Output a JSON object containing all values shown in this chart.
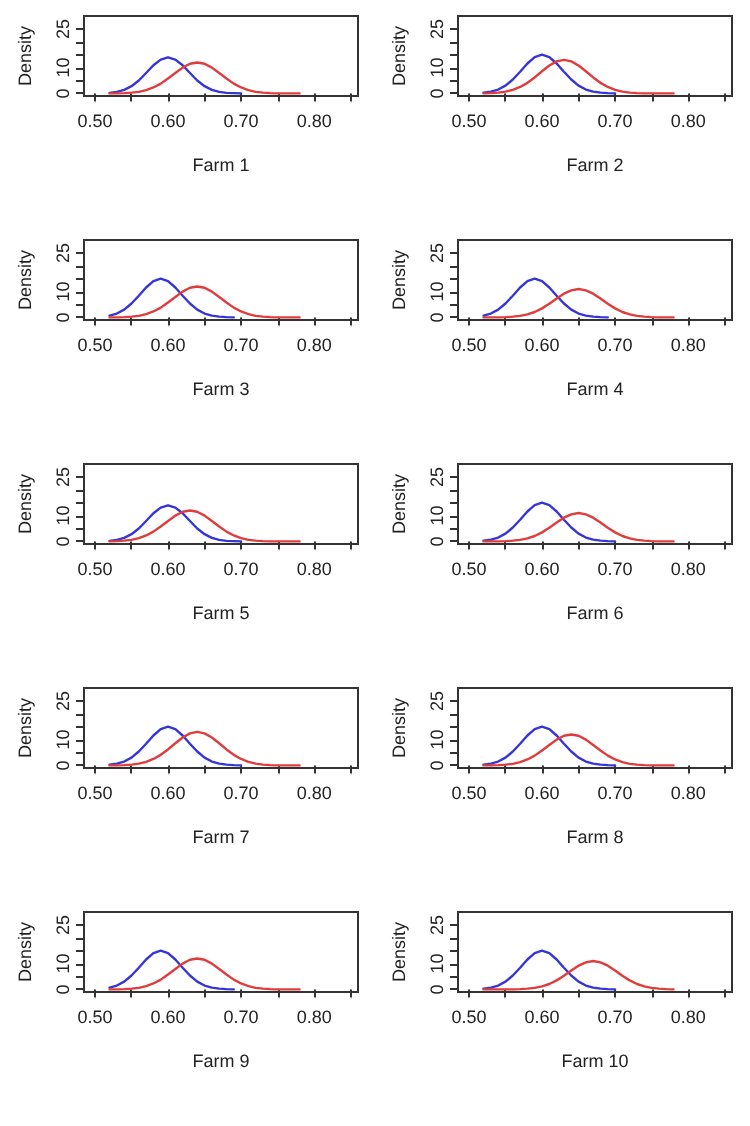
{
  "chart_data": [
    {
      "type": "line",
      "xlabel": "Farm 1",
      "ylabel": "Density",
      "marker": "none",
      "line_style": "solid",
      "grid": false,
      "xlim": [
        0.485,
        0.86
      ],
      "ylim": [
        -1,
        30
      ],
      "xticks": [
        {
          "value": 0.5,
          "label": "0.50"
        },
        {
          "value": 0.55,
          "label": null
        },
        {
          "value": 0.6,
          "label": "0.60"
        },
        {
          "value": 0.65,
          "label": null
        },
        {
          "value": 0.7,
          "label": "0.70"
        },
        {
          "value": 0.75,
          "label": null
        },
        {
          "value": 0.8,
          "label": "0.80"
        },
        {
          "value": 0.85,
          "label": null
        }
      ],
      "yticks": [
        0,
        {
          "value": 5,
          "label": null
        },
        10,
        {
          "value": 15,
          "label": null
        },
        {
          "value": 20,
          "label": null
        },
        25
      ],
      "x": [
        0.52,
        0.53,
        0.54,
        0.55,
        0.56,
        0.57,
        0.58,
        0.59,
        0.6,
        0.61,
        0.62,
        0.63,
        0.64,
        0.65,
        0.66,
        0.67,
        0.68,
        0.69,
        0.7,
        0.71,
        0.72,
        0.73,
        0.74,
        0.75,
        0.76,
        0.77,
        0.78
      ],
      "series": [
        {
          "color": "#3535d8",
          "values": [
            0.2,
            0.6,
            1.4,
            2.8,
            5.0,
            7.9,
            10.9,
            13.1,
            14,
            13.1,
            10.9,
            7.9,
            5.0,
            2.8,
            1.4,
            0.6,
            0.2,
            0.1,
            0,
            null,
            null,
            null,
            null,
            null,
            null,
            null,
            null
          ]
        },
        {
          "color": "#e03c3c",
          "values": [
            0,
            0,
            0.1,
            0.3,
            0.6,
            1.3,
            2.3,
            3.8,
            5.8,
            7.9,
            10.0,
            11.5,
            12,
            11.5,
            10.0,
            7.9,
            5.8,
            3.8,
            2.3,
            1.3,
            0.6,
            0.3,
            0.1,
            0,
            0,
            0,
            0
          ]
        }
      ]
    },
    {
      "type": "line",
      "xlabel": "Farm 2",
      "ylabel": "Density",
      "marker": "none",
      "line_style": "solid",
      "grid": false,
      "xlim": [
        0.485,
        0.86
      ],
      "ylim": [
        -1,
        30
      ],
      "xticks": [
        {
          "value": 0.5,
          "label": "0.50"
        },
        {
          "value": 0.55,
          "label": null
        },
        {
          "value": 0.6,
          "label": "0.60"
        },
        {
          "value": 0.65,
          "label": null
        },
        {
          "value": 0.7,
          "label": "0.70"
        },
        {
          "value": 0.75,
          "label": null
        },
        {
          "value": 0.8,
          "label": "0.80"
        },
        {
          "value": 0.85,
          "label": null
        }
      ],
      "yticks": [
        0,
        {
          "value": 5,
          "label": null
        },
        10,
        {
          "value": 15,
          "label": null
        },
        {
          "value": 20,
          "label": null
        },
        25
      ],
      "x": [
        0.52,
        0.53,
        0.54,
        0.55,
        0.56,
        0.57,
        0.58,
        0.59,
        0.6,
        0.61,
        0.62,
        0.63,
        0.64,
        0.65,
        0.66,
        0.67,
        0.68,
        0.69,
        0.7,
        0.71,
        0.72,
        0.73,
        0.74,
        0.75,
        0.76,
        0.77,
        0.78
      ],
      "series": [
        {
          "color": "#3535d8",
          "values": [
            0.3,
            0.7,
            1.5,
            3.0,
            5.4,
            8.4,
            11.6,
            14.1,
            15,
            14.1,
            11.6,
            8.4,
            5.4,
            3.0,
            1.5,
            0.7,
            0.3,
            0.1,
            0,
            null,
            null,
            null,
            null,
            null,
            null,
            null,
            null
          ]
        },
        {
          "color": "#e03c3c",
          "values": [
            0,
            0.1,
            0.3,
            0.7,
            1.4,
            2.5,
            4.1,
            6.2,
            8.6,
            10.8,
            12.4,
            13,
            12.4,
            10.8,
            8.6,
            6.2,
            4.1,
            2.5,
            1.4,
            0.7,
            0.3,
            0.1,
            0,
            0,
            0,
            0,
            0
          ]
        }
      ]
    },
    {
      "type": "line",
      "xlabel": "Farm 3",
      "ylabel": "Density",
      "marker": "none",
      "line_style": "solid",
      "grid": false,
      "xlim": [
        0.485,
        0.86
      ],
      "ylim": [
        -1,
        30
      ],
      "xticks": [
        {
          "value": 0.5,
          "label": "0.50"
        },
        {
          "value": 0.55,
          "label": null
        },
        {
          "value": 0.6,
          "label": "0.60"
        },
        {
          "value": 0.65,
          "label": null
        },
        {
          "value": 0.7,
          "label": "0.70"
        },
        {
          "value": 0.75,
          "label": null
        },
        {
          "value": 0.8,
          "label": "0.80"
        },
        {
          "value": 0.85,
          "label": null
        }
      ],
      "yticks": [
        0,
        {
          "value": 5,
          "label": null
        },
        10,
        {
          "value": 15,
          "label": null
        },
        {
          "value": 20,
          "label": null
        },
        25
      ],
      "x": [
        0.52,
        0.53,
        0.54,
        0.55,
        0.56,
        0.57,
        0.58,
        0.59,
        0.6,
        0.61,
        0.62,
        0.63,
        0.64,
        0.65,
        0.66,
        0.67,
        0.68,
        0.69,
        0.7,
        0.71,
        0.72,
        0.73,
        0.74,
        0.75,
        0.76,
        0.77,
        0.78
      ],
      "series": [
        {
          "color": "#3535d8",
          "values": [
            0.7,
            1.5,
            3.0,
            5.4,
            8.4,
            11.6,
            14.1,
            15,
            14.1,
            11.6,
            8.4,
            5.4,
            3.0,
            1.5,
            0.7,
            0.3,
            0.1,
            0,
            null,
            null,
            null,
            null,
            null,
            null,
            null,
            null,
            null
          ]
        },
        {
          "color": "#e03c3c",
          "values": [
            0,
            0,
            0.1,
            0.3,
            0.6,
            1.3,
            2.3,
            3.8,
            5.8,
            7.9,
            10.0,
            11.5,
            12,
            11.5,
            10.0,
            7.9,
            5.8,
            3.8,
            2.3,
            1.3,
            0.6,
            0.3,
            0.1,
            0,
            0,
            0,
            0
          ]
        }
      ]
    },
    {
      "type": "line",
      "xlabel": "Farm 4",
      "ylabel": "Density",
      "marker": "none",
      "line_style": "solid",
      "grid": false,
      "xlim": [
        0.485,
        0.86
      ],
      "ylim": [
        -1,
        30
      ],
      "xticks": [
        {
          "value": 0.5,
          "label": "0.50"
        },
        {
          "value": 0.55,
          "label": null
        },
        {
          "value": 0.6,
          "label": "0.60"
        },
        {
          "value": 0.65,
          "label": null
        },
        {
          "value": 0.7,
          "label": "0.70"
        },
        {
          "value": 0.75,
          "label": null
        },
        {
          "value": 0.8,
          "label": "0.80"
        },
        {
          "value": 0.85,
          "label": null
        }
      ],
      "yticks": [
        0,
        {
          "value": 5,
          "label": null
        },
        10,
        {
          "value": 15,
          "label": null
        },
        {
          "value": 20,
          "label": null
        },
        25
      ],
      "x": [
        0.52,
        0.53,
        0.54,
        0.55,
        0.56,
        0.57,
        0.58,
        0.59,
        0.6,
        0.61,
        0.62,
        0.63,
        0.64,
        0.65,
        0.66,
        0.67,
        0.68,
        0.69,
        0.7,
        0.71,
        0.72,
        0.73,
        0.74,
        0.75,
        0.76,
        0.77,
        0.78
      ],
      "series": [
        {
          "color": "#3535d8",
          "values": [
            0.7,
            1.5,
            3.0,
            5.4,
            8.4,
            11.6,
            14.1,
            15,
            14.1,
            11.6,
            8.4,
            5.4,
            3.0,
            1.5,
            0.7,
            0.3,
            0.1,
            0,
            null,
            null,
            null,
            null,
            null,
            null,
            null,
            null,
            null
          ]
        },
        {
          "color": "#e03c3c",
          "values": [
            0,
            0,
            0,
            0.1,
            0.3,
            0.6,
            1.2,
            2.1,
            3.5,
            5.3,
            7.3,
            9.2,
            10.5,
            11,
            10.5,
            9.2,
            7.3,
            5.3,
            3.5,
            2.1,
            1.2,
            0.6,
            0.3,
            0.1,
            0,
            0,
            0
          ]
        }
      ]
    },
    {
      "type": "line",
      "xlabel": "Farm 5",
      "ylabel": "Density",
      "marker": "none",
      "line_style": "solid",
      "grid": false,
      "xlim": [
        0.485,
        0.86
      ],
      "ylim": [
        -1,
        30
      ],
      "xticks": [
        {
          "value": 0.5,
          "label": "0.50"
        },
        {
          "value": 0.55,
          "label": null
        },
        {
          "value": 0.6,
          "label": "0.60"
        },
        {
          "value": 0.65,
          "label": null
        },
        {
          "value": 0.7,
          "label": "0.70"
        },
        {
          "value": 0.75,
          "label": null
        },
        {
          "value": 0.8,
          "label": "0.80"
        },
        {
          "value": 0.85,
          "label": null
        }
      ],
      "yticks": [
        0,
        {
          "value": 5,
          "label": null
        },
        10,
        {
          "value": 15,
          "label": null
        },
        {
          "value": 20,
          "label": null
        },
        25
      ],
      "x": [
        0.52,
        0.53,
        0.54,
        0.55,
        0.56,
        0.57,
        0.58,
        0.59,
        0.6,
        0.61,
        0.62,
        0.63,
        0.64,
        0.65,
        0.66,
        0.67,
        0.68,
        0.69,
        0.7,
        0.71,
        0.72,
        0.73,
        0.74,
        0.75,
        0.76,
        0.77,
        0.78
      ],
      "series": [
        {
          "color": "#3535d8",
          "values": [
            0.2,
            0.6,
            1.4,
            2.8,
            5.0,
            7.9,
            10.9,
            13.1,
            14,
            13.1,
            10.9,
            7.9,
            5.0,
            2.8,
            1.4,
            0.6,
            0.2,
            0.1,
            0,
            null,
            null,
            null,
            null,
            null,
            null,
            null,
            null
          ]
        },
        {
          "color": "#e03c3c",
          "values": [
            0,
            0.1,
            0.3,
            0.6,
            1.3,
            2.3,
            3.8,
            5.8,
            7.9,
            10.0,
            11.5,
            12,
            11.5,
            10.0,
            7.9,
            5.8,
            3.8,
            2.3,
            1.3,
            0.6,
            0.3,
            0.1,
            0,
            0,
            0,
            0,
            0
          ]
        }
      ]
    },
    {
      "type": "line",
      "xlabel": "Farm 6",
      "ylabel": "Density",
      "marker": "none",
      "line_style": "solid",
      "grid": false,
      "xlim": [
        0.485,
        0.86
      ],
      "ylim": [
        -1,
        30
      ],
      "xticks": [
        {
          "value": 0.5,
          "label": "0.50"
        },
        {
          "value": 0.55,
          "label": null
        },
        {
          "value": 0.6,
          "label": "0.60"
        },
        {
          "value": 0.65,
          "label": null
        },
        {
          "value": 0.7,
          "label": "0.70"
        },
        {
          "value": 0.75,
          "label": null
        },
        {
          "value": 0.8,
          "label": "0.80"
        },
        {
          "value": 0.85,
          "label": null
        }
      ],
      "yticks": [
        0,
        {
          "value": 5,
          "label": null
        },
        10,
        {
          "value": 15,
          "label": null
        },
        {
          "value": 20,
          "label": null
        },
        25
      ],
      "x": [
        0.52,
        0.53,
        0.54,
        0.55,
        0.56,
        0.57,
        0.58,
        0.59,
        0.6,
        0.61,
        0.62,
        0.63,
        0.64,
        0.65,
        0.66,
        0.67,
        0.68,
        0.69,
        0.7,
        0.71,
        0.72,
        0.73,
        0.74,
        0.75,
        0.76,
        0.77,
        0.78
      ],
      "series": [
        {
          "color": "#3535d8",
          "values": [
            0.3,
            0.7,
            1.5,
            3.0,
            5.4,
            8.4,
            11.6,
            14.1,
            15,
            14.1,
            11.6,
            8.4,
            5.4,
            3.0,
            1.5,
            0.7,
            0.3,
            0.1,
            0,
            null,
            null,
            null,
            null,
            null,
            null,
            null,
            null
          ]
        },
        {
          "color": "#e03c3c",
          "values": [
            0,
            0,
            0,
            0.1,
            0.3,
            0.6,
            1.2,
            2.1,
            3.5,
            5.3,
            7.3,
            9.2,
            10.5,
            11,
            10.5,
            9.2,
            7.3,
            5.3,
            3.5,
            2.1,
            1.2,
            0.6,
            0.3,
            0.1,
            0,
            0,
            0
          ]
        }
      ]
    },
    {
      "type": "line",
      "xlabel": "Farm 7",
      "ylabel": "Density",
      "marker": "none",
      "line_style": "solid",
      "grid": false,
      "xlim": [
        0.485,
        0.86
      ],
      "ylim": [
        -1,
        30
      ],
      "xticks": [
        {
          "value": 0.5,
          "label": "0.50"
        },
        {
          "value": 0.55,
          "label": null
        },
        {
          "value": 0.6,
          "label": "0.60"
        },
        {
          "value": 0.65,
          "label": null
        },
        {
          "value": 0.7,
          "label": "0.70"
        },
        {
          "value": 0.75,
          "label": null
        },
        {
          "value": 0.8,
          "label": "0.80"
        },
        {
          "value": 0.85,
          "label": null
        }
      ],
      "yticks": [
        0,
        {
          "value": 5,
          "label": null
        },
        10,
        {
          "value": 15,
          "label": null
        },
        {
          "value": 20,
          "label": null
        },
        25
      ],
      "x": [
        0.52,
        0.53,
        0.54,
        0.55,
        0.56,
        0.57,
        0.58,
        0.59,
        0.6,
        0.61,
        0.62,
        0.63,
        0.64,
        0.65,
        0.66,
        0.67,
        0.68,
        0.69,
        0.7,
        0.71,
        0.72,
        0.73,
        0.74,
        0.75,
        0.76,
        0.77,
        0.78
      ],
      "series": [
        {
          "color": "#3535d8",
          "values": [
            0.3,
            0.7,
            1.5,
            3.0,
            5.4,
            8.4,
            11.6,
            14.1,
            15,
            14.1,
            11.6,
            8.4,
            5.4,
            3.0,
            1.5,
            0.7,
            0.3,
            0.1,
            0,
            null,
            null,
            null,
            null,
            null,
            null,
            null,
            null
          ]
        },
        {
          "color": "#e03c3c",
          "values": [
            0,
            0,
            0.1,
            0.3,
            0.7,
            1.4,
            2.5,
            4.1,
            6.2,
            8.6,
            10.8,
            12.4,
            13,
            12.4,
            10.8,
            8.6,
            6.2,
            4.1,
            2.5,
            1.4,
            0.7,
            0.3,
            0.1,
            0,
            0,
            0,
            0
          ]
        }
      ]
    },
    {
      "type": "line",
      "xlabel": "Farm 8",
      "ylabel": "Density",
      "marker": "none",
      "line_style": "solid",
      "grid": false,
      "xlim": [
        0.485,
        0.86
      ],
      "ylim": [
        -1,
        30
      ],
      "xticks": [
        {
          "value": 0.5,
          "label": "0.50"
        },
        {
          "value": 0.55,
          "label": null
        },
        {
          "value": 0.6,
          "label": "0.60"
        },
        {
          "value": 0.65,
          "label": null
        },
        {
          "value": 0.7,
          "label": "0.70"
        },
        {
          "value": 0.75,
          "label": null
        },
        {
          "value": 0.8,
          "label": "0.80"
        },
        {
          "value": 0.85,
          "label": null
        }
      ],
      "yticks": [
        0,
        {
          "value": 5,
          "label": null
        },
        10,
        {
          "value": 15,
          "label": null
        },
        {
          "value": 20,
          "label": null
        },
        25
      ],
      "x": [
        0.52,
        0.53,
        0.54,
        0.55,
        0.56,
        0.57,
        0.58,
        0.59,
        0.6,
        0.61,
        0.62,
        0.63,
        0.64,
        0.65,
        0.66,
        0.67,
        0.68,
        0.69,
        0.7,
        0.71,
        0.72,
        0.73,
        0.74,
        0.75,
        0.76,
        0.77,
        0.78
      ],
      "series": [
        {
          "color": "#3535d8",
          "values": [
            0.3,
            0.7,
            1.5,
            3.0,
            5.4,
            8.4,
            11.6,
            14.1,
            15,
            14.1,
            11.6,
            8.4,
            5.4,
            3.0,
            1.5,
            0.7,
            0.3,
            0.1,
            0,
            null,
            null,
            null,
            null,
            null,
            null,
            null,
            null
          ]
        },
        {
          "color": "#e03c3c",
          "values": [
            0,
            0,
            0.1,
            0.3,
            0.6,
            1.3,
            2.3,
            3.8,
            5.8,
            7.9,
            10.0,
            11.5,
            12,
            11.5,
            10.0,
            7.9,
            5.8,
            3.8,
            2.3,
            1.3,
            0.6,
            0.3,
            0.1,
            0,
            0,
            0,
            0
          ]
        }
      ]
    },
    {
      "type": "line",
      "xlabel": "Farm 9",
      "ylabel": "Density",
      "marker": "none",
      "line_style": "solid",
      "grid": false,
      "xlim": [
        0.485,
        0.86
      ],
      "ylim": [
        -1,
        30
      ],
      "xticks": [
        {
          "value": 0.5,
          "label": "0.50"
        },
        {
          "value": 0.55,
          "label": null
        },
        {
          "value": 0.6,
          "label": "0.60"
        },
        {
          "value": 0.65,
          "label": null
        },
        {
          "value": 0.7,
          "label": "0.70"
        },
        {
          "value": 0.75,
          "label": null
        },
        {
          "value": 0.8,
          "label": "0.80"
        },
        {
          "value": 0.85,
          "label": null
        }
      ],
      "yticks": [
        0,
        {
          "value": 5,
          "label": null
        },
        10,
        {
          "value": 15,
          "label": null
        },
        {
          "value": 20,
          "label": null
        },
        25
      ],
      "x": [
        0.52,
        0.53,
        0.54,
        0.55,
        0.56,
        0.57,
        0.58,
        0.59,
        0.6,
        0.61,
        0.62,
        0.63,
        0.64,
        0.65,
        0.66,
        0.67,
        0.68,
        0.69,
        0.7,
        0.71,
        0.72,
        0.73,
        0.74,
        0.75,
        0.76,
        0.77,
        0.78
      ],
      "series": [
        {
          "color": "#3535d8",
          "values": [
            0.7,
            1.5,
            3.0,
            5.4,
            8.4,
            11.6,
            14.1,
            15,
            14.1,
            11.6,
            8.4,
            5.4,
            3.0,
            1.5,
            0.7,
            0.3,
            0.1,
            0,
            null,
            null,
            null,
            null,
            null,
            null,
            null,
            null,
            null
          ]
        },
        {
          "color": "#e03c3c",
          "values": [
            0,
            0,
            0.1,
            0.3,
            0.6,
            1.3,
            2.3,
            3.8,
            5.8,
            7.9,
            10.0,
            11.5,
            12,
            11.5,
            10.0,
            7.9,
            5.8,
            3.8,
            2.3,
            1.3,
            0.6,
            0.3,
            0.1,
            0,
            0,
            0,
            0
          ]
        }
      ]
    },
    {
      "type": "line",
      "xlabel": "Farm 10",
      "ylabel": "Density",
      "marker": "none",
      "line_style": "solid",
      "grid": false,
      "xlim": [
        0.485,
        0.86
      ],
      "ylim": [
        -1,
        30
      ],
      "xticks": [
        {
          "value": 0.5,
          "label": "0.50"
        },
        {
          "value": 0.55,
          "label": null
        },
        {
          "value": 0.6,
          "label": "0.60"
        },
        {
          "value": 0.65,
          "label": null
        },
        {
          "value": 0.7,
          "label": "0.70"
        },
        {
          "value": 0.75,
          "label": null
        },
        {
          "value": 0.8,
          "label": "0.80"
        },
        {
          "value": 0.85,
          "label": null
        }
      ],
      "yticks": [
        0,
        {
          "value": 5,
          "label": null
        },
        10,
        {
          "value": 15,
          "label": null
        },
        {
          "value": 20,
          "label": null
        },
        25
      ],
      "x": [
        0.52,
        0.53,
        0.54,
        0.55,
        0.56,
        0.57,
        0.58,
        0.59,
        0.6,
        0.61,
        0.62,
        0.63,
        0.64,
        0.65,
        0.66,
        0.67,
        0.68,
        0.69,
        0.7,
        0.71,
        0.72,
        0.73,
        0.74,
        0.75,
        0.76,
        0.77,
        0.78
      ],
      "series": [
        {
          "color": "#3535d8",
          "values": [
            0.3,
            0.7,
            1.5,
            3.0,
            5.4,
            8.4,
            11.6,
            14.1,
            15,
            14.1,
            11.6,
            8.4,
            5.4,
            3.0,
            1.5,
            0.7,
            0.3,
            0.1,
            0,
            null,
            null,
            null,
            null,
            null,
            null,
            null,
            null
          ]
        },
        {
          "color": "#e03c3c",
          "values": [
            0,
            0,
            0,
            0,
            0,
            0.1,
            0.3,
            0.6,
            1.2,
            2.1,
            3.5,
            5.3,
            7.3,
            9.2,
            10.5,
            11,
            10.5,
            9.2,
            7.3,
            5.3,
            3.5,
            2.1,
            1.2,
            0.6,
            0.3,
            0.1,
            0
          ]
        }
      ]
    }
  ]
}
